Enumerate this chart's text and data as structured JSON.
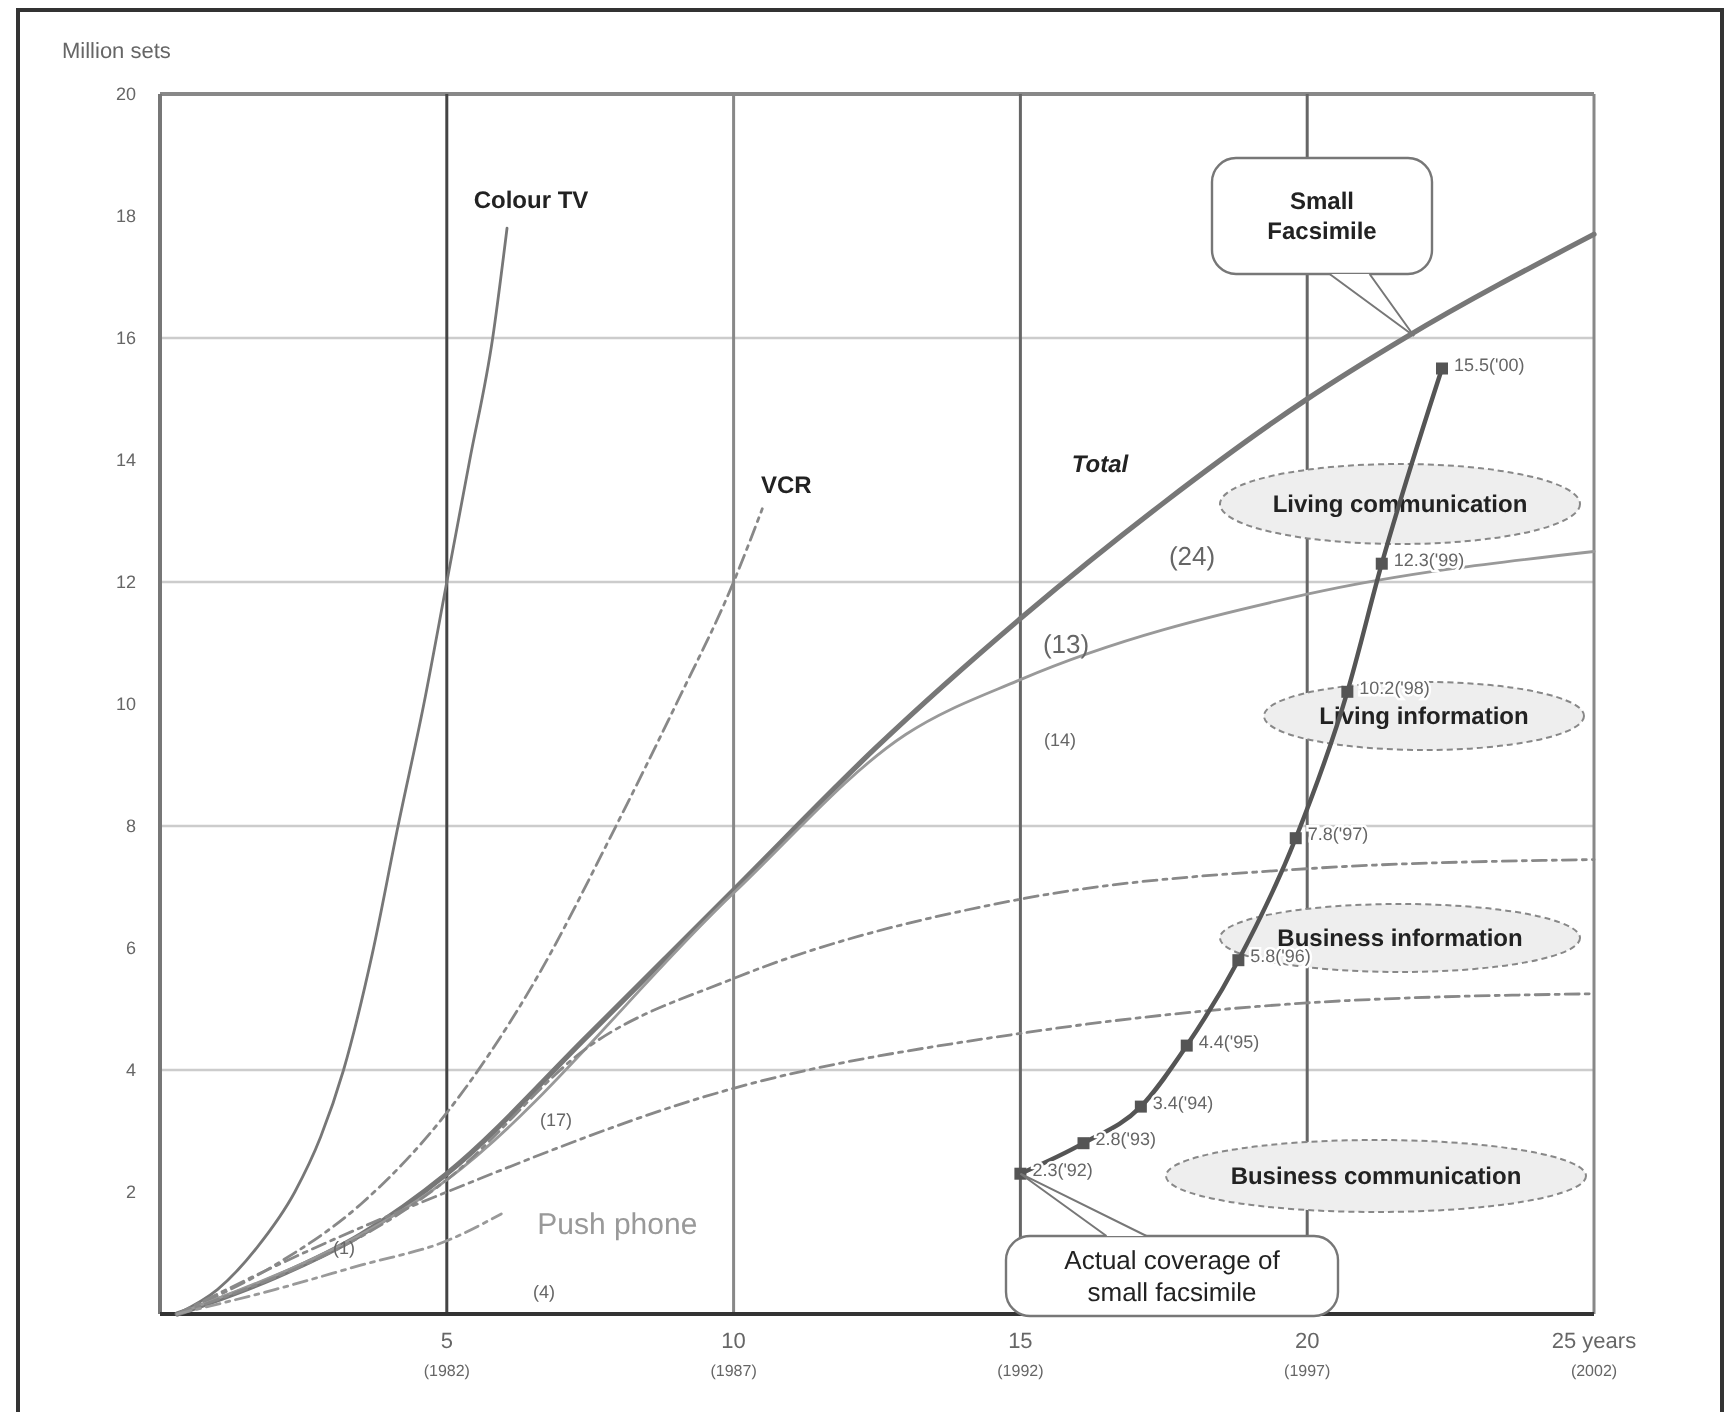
{
  "chart_data": {
    "type": "line",
    "ylabel": "Million sets",
    "xlim": [
      0,
      25
    ],
    "ylim": [
      0,
      20
    ],
    "xticks": [
      5,
      10,
      15,
      20,
      {
        "value": 25,
        "label": "25 years"
      }
    ],
    "yticks": [
      2,
      4,
      6,
      8,
      10,
      12,
      14,
      16,
      18,
      20
    ],
    "grid": false,
    "marker": "none",
    "series": [
      {
        "name": "Colour TV",
        "color": "#777777",
        "line_style": "solid",
        "x": [
          0.3,
          1,
          1.7,
          2.35,
          2.8,
          3.2,
          3.7,
          4.15,
          4.6,
          5.0,
          5.4,
          5.8,
          6.05
        ],
        "values": [
          0,
          0.4,
          1.1,
          2,
          2.9,
          4,
          5.9,
          8,
          10,
          12,
          14,
          16,
          17.8
        ]
      },
      {
        "name": "VCR",
        "color": "#888888",
        "line_style": "dashed",
        "x": [
          0.3,
          2,
          3.5,
          5,
          6.5,
          7.95,
          9,
          10,
          10.5
        ],
        "values": [
          0,
          0.8,
          1.8,
          3.3,
          5.4,
          8,
          10,
          12,
          13.2
        ]
      },
      {
        "name": "Total",
        "color": "#777777",
        "line_style": "solid",
        "x": [
          0.3,
          2,
          3.5,
          5,
          7.5,
          10,
          12.5,
          15,
          17.5,
          20,
          21.7,
          25
        ],
        "values": [
          0,
          0.6,
          1.3,
          2.3,
          4.6,
          6.95,
          9.3,
          11.4,
          13.3,
          15,
          16,
          17.7
        ]
      },
      {
        "color": "#999999",
        "line_style": "solid",
        "x": [
          0.3,
          5,
          10,
          13,
          15,
          20,
          25
        ],
        "values": [
          0,
          2.2,
          6.9,
          9.5,
          10.4,
          11.8,
          12.5
        ]
      },
      {
        "color": "#888888",
        "line_style": "dashed",
        "x": [
          0.3,
          5,
          7.5,
          10,
          15,
          20,
          25
        ],
        "values": [
          0,
          2.2,
          4.4,
          5.5,
          6.8,
          7.3,
          7.45
        ]
      },
      {
        "color": "#888888",
        "line_style": "dashed",
        "x": [
          0.3,
          2.5,
          5,
          10,
          15,
          20,
          25
        ],
        "values": [
          0,
          1.0,
          2.0,
          3.7,
          4.6,
          5.1,
          5.25
        ]
      },
      {
        "name": "Push phone",
        "color": "#999999",
        "line_style": "dashed",
        "x": [
          0.3,
          2,
          3.5,
          5,
          5.95
        ],
        "values": [
          0,
          0.4,
          0.8,
          1.2,
          1.64
        ]
      },
      {
        "color": "#555555",
        "line_style": "solid",
        "marker": "square",
        "x": [
          15,
          16.1,
          17.1,
          17.9,
          18.8,
          19.8,
          20.7,
          21.3,
          22.35
        ],
        "values": [
          2.3,
          2.8,
          3.4,
          4.4,
          5.8,
          7.8,
          10.2,
          12.3,
          15.5
        ],
        "value_labels": [
          "2.3('92)",
          "2.8('93)",
          "3.4('94)",
          "4.4('95)",
          "5.8('96)",
          "7.8('97)",
          "10.2('98)",
          "12.3('99)",
          "15.5('00)"
        ]
      }
    ],
    "ref_lines": [
      {
        "axis": "y",
        "value": 4,
        "color": "#cccccc"
      },
      {
        "axis": "y",
        "value": 8,
        "color": "#cccccc"
      },
      {
        "axis": "y",
        "value": 12,
        "color": "#cccccc"
      },
      {
        "axis": "y",
        "value": 16,
        "color": "#cccccc"
      },
      {
        "axis": "y",
        "value": 20,
        "color": "#888888"
      },
      {
        "axis": "x",
        "value": 5,
        "color": "#444444"
      },
      {
        "axis": "x",
        "value": 10,
        "color": "#888888"
      },
      {
        "axis": "x",
        "value": 15,
        "color": "#666666"
      },
      {
        "axis": "x",
        "value": 20,
        "color": "#666666"
      },
      {
        "axis": "x",
        "value": 25,
        "color": "#888888"
      }
    ],
    "annotations": [
      "Small Facsimile",
      "Living communication",
      "Living information",
      "Business information",
      "Business communication",
      {
        "text": "Actual coverage of small facsimile",
        "x": 15,
        "y": 2.3
      },
      "(13)",
      "(24)",
      "(1)",
      "(4)",
      "(17)",
      "(14)",
      "(1982)",
      "(1987)",
      "(1992)",
      "(1997)",
      "(2002)"
    ]
  }
}
